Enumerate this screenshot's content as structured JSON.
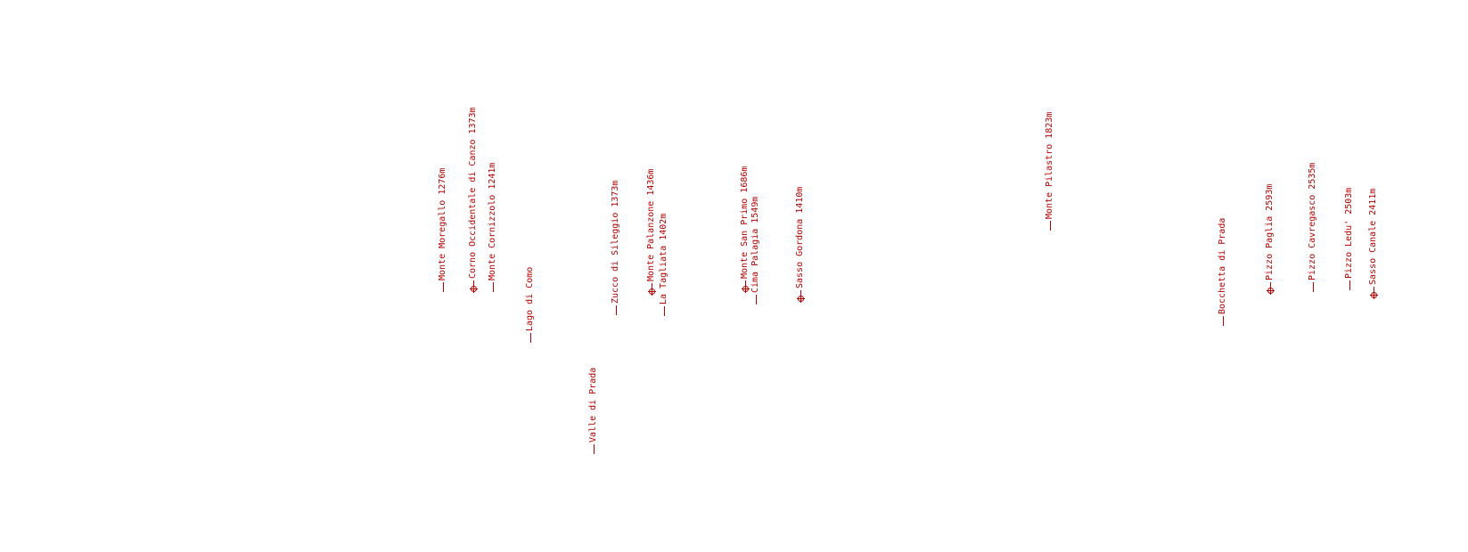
{
  "overlay": {
    "accent_color": "#b30000",
    "labels": [
      {
        "text": "Monte Moregallo 1276m",
        "marker": "tick"
      },
      {
        "text": "Corno Occidentale di Canzo 1373m",
        "marker": "summit-icon"
      },
      {
        "text": "Monte Cornizzolo 1241m",
        "marker": "tick"
      },
      {
        "text": "Lago di Como",
        "marker": "tick"
      },
      {
        "text": "Valle di Prada",
        "marker": "tick"
      },
      {
        "text": "Zucco di Sileggio 1373m",
        "marker": "tick"
      },
      {
        "text": "Monte Palanzone 1436m",
        "marker": "summit-icon"
      },
      {
        "text": "La Tagliata 1402m",
        "marker": "tick"
      },
      {
        "text": "Monte San Primo 1686m",
        "marker": "summit-icon"
      },
      {
        "text": "Cima Palagia 1549m",
        "marker": "tick"
      },
      {
        "text": "Sasso Gordona 1410m",
        "marker": "summit-icon"
      },
      {
        "text": "Monte Pilastro 1823m",
        "marker": "tick"
      },
      {
        "text": "Bocchetta di Prada",
        "marker": "tick"
      },
      {
        "text": "Pizzo Paglia 2593m",
        "marker": "summit-icon"
      },
      {
        "text": "Pizzo Cavregasco 2535m",
        "marker": "tick"
      },
      {
        "text": "Pizzo Ledu' 2503m",
        "marker": "tick"
      },
      {
        "text": "Sasso Canale 2411m",
        "marker": "summit-icon"
      }
    ]
  }
}
